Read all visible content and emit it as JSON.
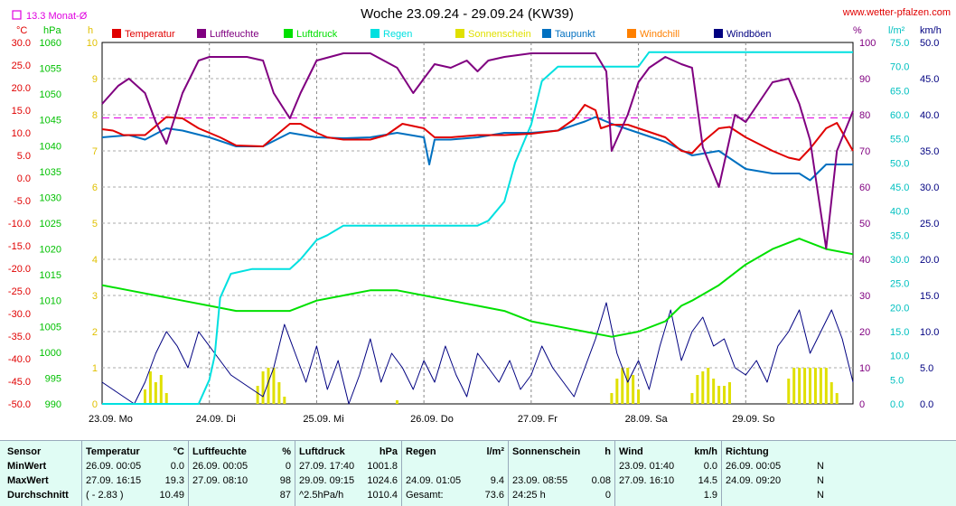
{
  "chart_data": {
    "type": "line",
    "title": "Woche 23.09.24 - 29.09.24 (KW39)",
    "source_label": "www.wetter-pfalzen.com",
    "monthly_avg_label": "13.3 Monat-Ø",
    "axis_units": {
      "temp": "°C",
      "pressure": "hPa",
      "sunshine": "h",
      "humidity": "%",
      "rain": "l/m²",
      "wind": "km/h"
    },
    "axes": {
      "temp": {
        "ticks": [
          "30.0",
          "25.0",
          "20.0",
          "15.0",
          "10.0",
          "5.0",
          "0.0",
          "-5.0",
          "-10.0",
          "-15.0",
          "-20.0",
          "-25.0",
          "-30.0",
          "-35.0",
          "-40.0",
          "-45.0",
          "-50.0"
        ],
        "min": -50,
        "max": 30
      },
      "pressure": {
        "ticks": [
          "1060",
          "1055",
          "1050",
          "1045",
          "1040",
          "1035",
          "1030",
          "1025",
          "1020",
          "1015",
          "1010",
          "1005",
          "1000",
          "995",
          "990"
        ],
        "min": 990,
        "max": 1060
      },
      "sunshine": {
        "ticks": [
          "10",
          "9",
          "8",
          "7",
          "6",
          "5",
          "4",
          "3",
          "2",
          "1",
          "0"
        ],
        "min": 0,
        "max": 10
      },
      "humidity": {
        "ticks": [
          "100",
          "90",
          "80",
          "70",
          "60",
          "50",
          "40",
          "30",
          "20",
          "10",
          "0"
        ],
        "min": 0,
        "max": 100
      },
      "rain": {
        "ticks": [
          "75.0",
          "70.0",
          "65.0",
          "60.0",
          "55.0",
          "50.0",
          "45.0",
          "40.0",
          "35.0",
          "30.0",
          "25.0",
          "20.0",
          "15.0",
          "10.0",
          "5.0",
          "0.0"
        ],
        "min": 0,
        "max": 75
      },
      "wind": {
        "ticks": [
          "50.0",
          "45.0",
          "40.0",
          "35.0",
          "30.0",
          "25.0",
          "20.0",
          "15.0",
          "10.0",
          "5.0",
          "0.0"
        ],
        "min": 0,
        "max": 50
      }
    },
    "x_ticks": [
      "23.09. Mo",
      "24.09. Di",
      "25.09. Mi",
      "26.09. Do",
      "27.09. Fr",
      "28.09. Sa",
      "29.09. So"
    ],
    "x_range_days": [
      0,
      7
    ],
    "monthly_avg_temp": 13.3,
    "grid": true,
    "series": [
      {
        "name": "Temperatur",
        "color": "#e00000",
        "axis": "temp",
        "x": [
          0,
          0.1,
          0.2,
          0.4,
          0.5,
          0.6,
          0.75,
          0.9,
          1.0,
          1.1,
          1.25,
          1.5,
          1.6,
          1.75,
          1.85,
          2.0,
          2.1,
          2.25,
          2.5,
          2.65,
          2.8,
          3.0,
          3.1,
          3.25,
          3.5,
          3.75,
          4.0,
          4.25,
          4.4,
          4.5,
          4.6,
          4.65,
          4.75,
          4.9,
          5.0,
          5.25,
          5.4,
          5.5,
          5.6,
          5.75,
          5.85,
          6.0,
          6.25,
          6.4,
          6.5,
          6.6,
          6.75,
          6.85,
          7.0
        ],
        "y": [
          10.8,
          10.5,
          9.5,
          9.5,
          11.5,
          13.5,
          13.2,
          11.0,
          10.0,
          9.0,
          7.2,
          7.0,
          9.0,
          12.0,
          12.0,
          10.0,
          9.0,
          8.5,
          8.5,
          9.5,
          12.0,
          11.0,
          9.0,
          9.0,
          9.5,
          9.5,
          9.8,
          10.5,
          13.0,
          16.2,
          15.0,
          11.0,
          11.8,
          11.8,
          11.0,
          9.0,
          6.0,
          5.5,
          8.0,
          11.0,
          11.3,
          9.0,
          6.0,
          4.5,
          4.0,
          6.5,
          11.0,
          12.2,
          6.0
        ]
      },
      {
        "name": "Luftfeuchte",
        "color": "#800080",
        "axis": "humidity",
        "x": [
          0,
          0.15,
          0.25,
          0.4,
          0.5,
          0.6,
          0.75,
          0.9,
          1.0,
          1.25,
          1.35,
          1.5,
          1.6,
          1.75,
          1.85,
          2.0,
          2.25,
          2.5,
          2.75,
          2.9,
          3.0,
          3.1,
          3.25,
          3.4,
          3.5,
          3.6,
          3.75,
          4.0,
          4.25,
          4.5,
          4.6,
          4.7,
          4.75,
          4.9,
          5.0,
          5.1,
          5.25,
          5.4,
          5.5,
          5.6,
          5.75,
          5.9,
          6.0,
          6.25,
          6.4,
          6.5,
          6.6,
          6.75,
          6.85,
          7.0
        ],
        "y": [
          83,
          88,
          90,
          86,
          78,
          72,
          86,
          95,
          96,
          96,
          96,
          95,
          86,
          79,
          86,
          95,
          97,
          97,
          93,
          86,
          90,
          94,
          93,
          95,
          92,
          95,
          96,
          97,
          97,
          97,
          97,
          92,
          70,
          80,
          89,
          93,
          96,
          94,
          93,
          71,
          60,
          80,
          78,
          89,
          90,
          83,
          73,
          43,
          70,
          81
        ]
      },
      {
        "name": "Luftdruck",
        "color": "#00e000",
        "axis": "pressure",
        "x": [
          0,
          0.25,
          0.5,
          0.75,
          1.0,
          1.25,
          1.5,
          1.75,
          2.0,
          2.25,
          2.5,
          2.75,
          3.0,
          3.25,
          3.5,
          3.75,
          4.0,
          4.25,
          4.5,
          4.75,
          5.0,
          5.25,
          5.4,
          5.5,
          5.75,
          6.0,
          6.25,
          6.5,
          6.75,
          7.0
        ],
        "y": [
          1013,
          1012,
          1011,
          1010,
          1009,
          1008,
          1008,
          1008,
          1010,
          1011,
          1012,
          1012,
          1011,
          1010,
          1009,
          1008,
          1006,
          1005,
          1004,
          1003,
          1004,
          1006,
          1009,
          1010,
          1013,
          1017,
          1020,
          1022,
          1020,
          1019
        ]
      },
      {
        "name": "Regen",
        "color": "#00e0e0",
        "axis": "rain",
        "x": [
          0,
          0.9,
          1.0,
          1.05,
          1.1,
          1.2,
          1.4,
          1.75,
          1.85,
          2.0,
          2.1,
          2.25,
          2.5,
          3.0,
          3.5,
          3.6,
          3.75,
          3.85,
          4.0,
          4.1,
          4.25,
          4.5,
          4.75,
          5.0,
          5.1,
          5.25,
          5.5,
          6.0,
          6.5,
          7.0
        ],
        "y": [
          0,
          0,
          5,
          10,
          22,
          27,
          28,
          28,
          30,
          34,
          35,
          37,
          37,
          37,
          37,
          38,
          42,
          50,
          58,
          67,
          70,
          70,
          70,
          70,
          73,
          73,
          73,
          73,
          73,
          73
        ]
      },
      {
        "name": "Sonnenschein",
        "color": "#e0e000",
        "axis": "sunshine",
        "bars": [
          [
            0.4,
            0.4
          ],
          [
            0.45,
            0.9
          ],
          [
            0.5,
            0.6
          ],
          [
            0.55,
            0.8
          ],
          [
            0.6,
            0.3
          ],
          [
            1.45,
            0.5
          ],
          [
            1.5,
            0.9
          ],
          [
            1.55,
            1.0
          ],
          [
            1.6,
            1.0
          ],
          [
            1.65,
            0.6
          ],
          [
            1.7,
            0.2
          ],
          [
            2.75,
            0.1
          ],
          [
            4.75,
            0.3
          ],
          [
            4.8,
            0.7
          ],
          [
            4.85,
            1.0
          ],
          [
            4.9,
            1.0
          ],
          [
            4.95,
            0.8
          ],
          [
            5.0,
            0.4
          ],
          [
            5.5,
            0.3
          ],
          [
            5.55,
            0.8
          ],
          [
            5.6,
            0.9
          ],
          [
            5.65,
            1.0
          ],
          [
            5.7,
            0.7
          ],
          [
            5.75,
            0.5
          ],
          [
            5.8,
            0.5
          ],
          [
            5.85,
            0.6
          ],
          [
            6.4,
            0.7
          ],
          [
            6.45,
            1.0
          ],
          [
            6.5,
            1.0
          ],
          [
            6.55,
            1.0
          ],
          [
            6.6,
            1.0
          ],
          [
            6.65,
            1.0
          ],
          [
            6.7,
            1.0
          ],
          [
            6.75,
            1.0
          ],
          [
            6.8,
            0.6
          ],
          [
            6.85,
            0.3
          ]
        ]
      },
      {
        "name": "Taupunkt",
        "color": "#0070c0",
        "axis": "temp",
        "x": [
          0,
          0.25,
          0.4,
          0.6,
          0.75,
          1.0,
          1.25,
          1.5,
          1.75,
          2.0,
          2.25,
          2.5,
          2.75,
          3.0,
          3.05,
          3.1,
          3.25,
          3.5,
          3.75,
          4.0,
          4.25,
          4.5,
          4.6,
          4.75,
          5.0,
          5.25,
          5.5,
          5.75,
          6.0,
          6.25,
          6.5,
          6.6,
          6.75,
          6.9,
          7.0
        ],
        "y": [
          9.0,
          9.5,
          8.5,
          11.0,
          10.5,
          9.0,
          7.0,
          7.0,
          10.0,
          9.0,
          8.8,
          9.0,
          10.0,
          9.0,
          3.0,
          8.5,
          8.5,
          9.0,
          10.0,
          10.0,
          10.5,
          12.5,
          13.5,
          12.0,
          10.0,
          8.0,
          5.0,
          6.0,
          2.0,
          1.0,
          1.0,
          -0.5,
          3.0,
          3.0,
          3.0
        ]
      },
      {
        "name": "Windchill",
        "color": "#ff8000",
        "axis": "temp",
        "x": [],
        "y": []
      },
      {
        "name": "Windböen",
        "color": "#000080",
        "axis": "wind",
        "x": [
          0,
          0.1,
          0.2,
          0.3,
          0.4,
          0.5,
          0.6,
          0.7,
          0.8,
          0.9,
          1.0,
          1.1,
          1.2,
          1.3,
          1.4,
          1.5,
          1.6,
          1.7,
          1.8,
          1.9,
          2.0,
          2.1,
          2.2,
          2.3,
          2.4,
          2.5,
          2.6,
          2.7,
          2.8,
          2.9,
          3.0,
          3.1,
          3.2,
          3.3,
          3.4,
          3.5,
          3.6,
          3.7,
          3.8,
          3.9,
          4.0,
          4.1,
          4.2,
          4.3,
          4.4,
          4.5,
          4.6,
          4.7,
          4.8,
          4.9,
          5.0,
          5.1,
          5.2,
          5.3,
          5.4,
          5.5,
          5.6,
          5.7,
          5.8,
          5.9,
          6.0,
          6.1,
          6.2,
          6.3,
          6.4,
          6.5,
          6.6,
          6.7,
          6.8,
          6.9,
          7.0
        ],
        "y": [
          3,
          2,
          1,
          0,
          3,
          7,
          10,
          8,
          5,
          10,
          8,
          6,
          4,
          3,
          2,
          1,
          5,
          11,
          7,
          3,
          8,
          2,
          6,
          0,
          4,
          9,
          3,
          7,
          5,
          2,
          6,
          3,
          8,
          4,
          1,
          7,
          5,
          3,
          6,
          2,
          4,
          8,
          5,
          3,
          1,
          5,
          9,
          14,
          7,
          3,
          6,
          2,
          8,
          13,
          6,
          10,
          12,
          8,
          9,
          5,
          4,
          6,
          3,
          8,
          10,
          13,
          7,
          10,
          13,
          9,
          3
        ]
      }
    ]
  },
  "table": {
    "headers": {
      "sensor": "Sensor",
      "temp": "Temperatur",
      "temp_unit": "°C",
      "hum": "Luftfeuchte",
      "hum_unit": "%",
      "press": "Luftdruck",
      "press_unit": "hPa",
      "rain": "Regen",
      "rain_unit": "l/m²",
      "sun": "Sonnenschein",
      "sun_unit": "h",
      "wind": "Wind",
      "wind_unit": "km/h",
      "dir": "Richtung"
    },
    "rows": [
      {
        "label": "MinWert",
        "temp_time": "26.09.  00:05",
        "temp_val": "0.0",
        "hum_time": "26.09.  00:05",
        "hum_val": "0",
        "press_time": "27.09.  17:40",
        "press_val": "1001.8",
        "rain_time": "",
        "rain_val": "",
        "sun_time": "",
        "sun_val": "",
        "wind_time": "23.09.  01:40",
        "wind_val": "0.0",
        "dir_time": "26.09.  00:05",
        "dir_val": "N"
      },
      {
        "label": "MaxWert",
        "temp_time": "27.09.  16:15",
        "temp_val": "19.3",
        "hum_time": "27.09.  08:10",
        "hum_val": "98",
        "press_time": "29.09.  09:15",
        "press_val": "1024.6",
        "rain_time": "24.09.  01:05",
        "rain_val": "9.4",
        "sun_time": "23.09.  08:55",
        "sun_val": "0.08",
        "wind_time": "27.09.  16:10",
        "wind_val": "14.5",
        "dir_time": "24.09.  09:20",
        "dir_val": "N"
      },
      {
        "label": "Durchschnitt",
        "temp_time": "( - 2.83 )",
        "temp_val": "10.49",
        "hum_time": "",
        "hum_val": "87",
        "press_time": "^2.5hPa/h",
        "press_val": "1010.4",
        "rain_time": "Gesamt:",
        "rain_val": "73.6",
        "sun_time": "24:25 h",
        "sun_val": "0",
        "wind_time": "",
        "wind_val": "1.9",
        "dir_time": "",
        "dir_val": "N"
      }
    ]
  }
}
